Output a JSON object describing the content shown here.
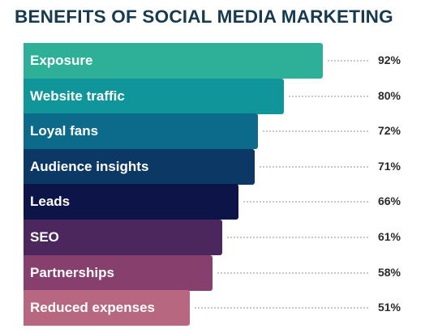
{
  "title": "BENEFITS OF SOCIAL MEDIA MARKETING",
  "chart_data": {
    "type": "bar",
    "orientation": "horizontal",
    "title": "BENEFITS OF SOCIAL MEDIA MARKETING",
    "xlabel": "",
    "ylabel": "",
    "unit": "%",
    "xlim": [
      0,
      100
    ],
    "grid": false,
    "categories": [
      "Exposure",
      "Website traffic",
      "Loyal fans",
      "Audience insights",
      "Leads",
      "SEO",
      "Partnerships",
      "Reduced expenses"
    ],
    "values": [
      92,
      80,
      72,
      71,
      66,
      61,
      58,
      51
    ],
    "value_labels": [
      "92%",
      "80%",
      "72%",
      "71%",
      "66%",
      "61%",
      "58%",
      "51%"
    ],
    "colors": [
      "#2EAF97",
      "#10959A",
      "#0C6A8A",
      "#0C3866",
      "#0C1448",
      "#4C275E",
      "#87406E",
      "#B7677F"
    ]
  }
}
